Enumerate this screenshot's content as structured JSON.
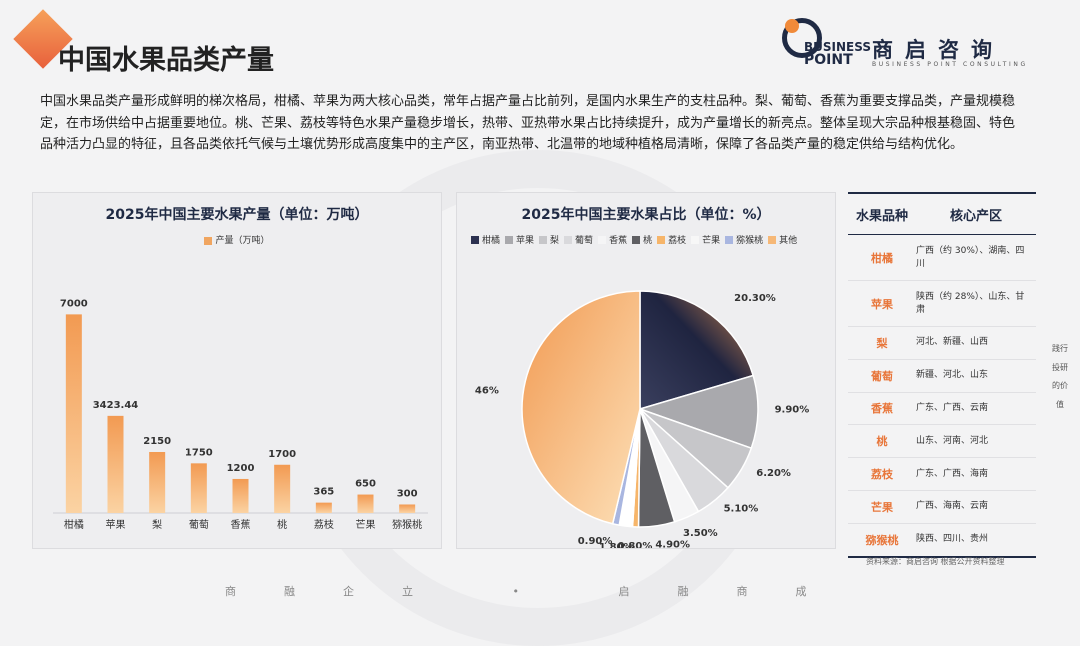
{
  "page": {
    "title": "中国水果品类产量",
    "logo_mark_line1": "BUSINESS",
    "logo_mark_line2": "POINT",
    "logo_cn": "商启咨询",
    "logo_en": "BUSINESS POINT CONSULTING",
    "intro": "中国水果品类产量形成鲜明的梯次格局，柑橘、苹果为两大核心品类，常年占据产量占比前列，是国内水果生产的支柱品种。梨、葡萄、香蕉为重要支撑品类，产量规模稳定，在市场供给中占据重要地位。桃、芒果、荔枝等特色水果产量稳步增长，热带、亚热带水果占比持续提升，成为产量增长的新亮点。整体呈现大宗品种根基稳固、特色品种活力凸显的特征，且各品类依托气候与土壤优势形成高度集中的主产区，南亚热带、北温带的地域种植格局清晰，保障了各品类产量的稳定供给与结构优化。",
    "source": "资料来源：商启咨询 根据公开资料整理",
    "side_text": "践行投研的价值",
    "footer": "商融企立 • 启融商成"
  },
  "chart_data": [
    {
      "type": "bar",
      "title": "2025年中国主要水果产量（单位：万吨）",
      "legend": "产量（万吨）",
      "categories": [
        "柑橘",
        "苹果",
        "梨",
        "葡萄",
        "香蕉",
        "桃",
        "荔枝",
        "芒果",
        "猕猴桃"
      ],
      "values": [
        7000,
        3423.44,
        2150,
        1750,
        1200,
        1700,
        365,
        650,
        300
      ],
      "labels": [
        "7000",
        "3423.44",
        "2150",
        "1750",
        "1200",
        "1700",
        "365",
        "650",
        "300"
      ],
      "ylim": [
        0,
        8000
      ],
      "color": "#f0a560"
    },
    {
      "type": "pie",
      "title": "2025年中国主要水果占比（单位：%）",
      "categories": [
        "柑橘",
        "苹果",
        "梨",
        "葡萄",
        "香蕉",
        "桃",
        "荔枝",
        "芒果",
        "猕猴桃",
        "其他"
      ],
      "values": [
        20.3,
        9.9,
        6.2,
        5.1,
        3.5,
        4.9,
        0.8,
        1.8,
        0.9,
        46
      ],
      "labels": [
        "20.30%",
        "9.90%",
        "6.20%",
        "5.10%",
        "3.50%",
        "4.90%",
        "0.80%",
        "1.80%",
        "0.90%",
        "46%"
      ],
      "colors": [
        "#2c3150",
        "#a9a9ad",
        "#c6c6c9",
        "#d9d9dc",
        "#f5f5f6",
        "#5f5f63",
        "#f6b56a",
        "#ffffff",
        "#a9b6e0",
        "#f6b877"
      ]
    }
  ],
  "table": {
    "header": [
      "水果品种",
      "核心产区"
    ],
    "rows": [
      {
        "fruit": "柑橘",
        "region": "广西（约 30%）、湖南、四川"
      },
      {
        "fruit": "苹果",
        "region": "陕西（约 28%）、山东、甘肃"
      },
      {
        "fruit": "梨",
        "region": "河北、新疆、山西"
      },
      {
        "fruit": "葡萄",
        "region": "新疆、河北、山东"
      },
      {
        "fruit": "香蕉",
        "region": "广东、广西、云南"
      },
      {
        "fruit": "桃",
        "region": "山东、河南、河北"
      },
      {
        "fruit": "荔枝",
        "region": "广东、广西、海南"
      },
      {
        "fruit": "芒果",
        "region": "广西、海南、云南"
      },
      {
        "fruit": "猕猴桃",
        "region": "陕西、四川、贵州"
      }
    ]
  }
}
